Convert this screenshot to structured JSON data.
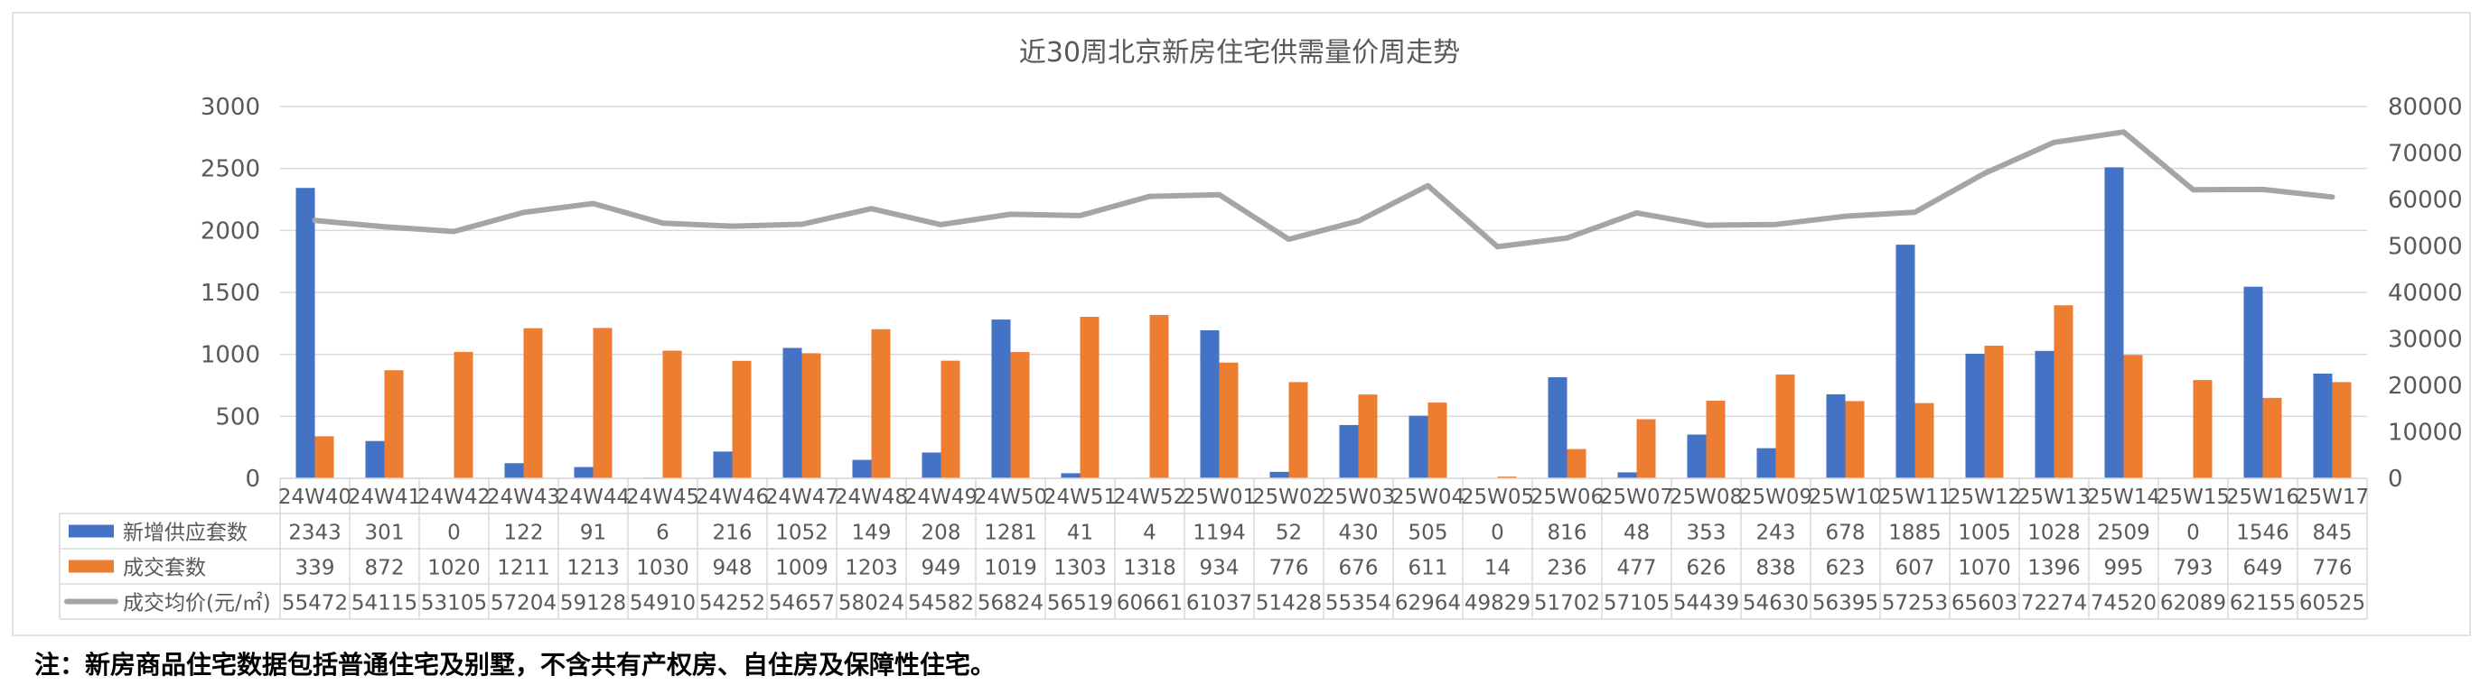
{
  "chart_data": {
    "type": "bar",
    "title": "近30周北京新房住宅供需量价周走势",
    "categories": [
      "24W40",
      "24W41",
      "24W42",
      "24W43",
      "24W44",
      "24W45",
      "24W46",
      "24W47",
      "24W48",
      "24W49",
      "24W50",
      "24W51",
      "24W52",
      "25W01",
      "25W02",
      "25W03",
      "25W04",
      "25W05",
      "25W06",
      "25W07",
      "25W08",
      "25W09",
      "25W10",
      "25W11",
      "25W12",
      "25W13",
      "25W14",
      "25W15",
      "25W16",
      "25W17"
    ],
    "series": [
      {
        "name": "新增供应套数",
        "type": "bar",
        "axis": "left",
        "color": "#4472C4",
        "values": [
          2343,
          301,
          0,
          122,
          91,
          6,
          216,
          1052,
          149,
          208,
          1281,
          41,
          4,
          1194,
          52,
          430,
          505,
          0,
          816,
          48,
          353,
          243,
          678,
          1885,
          1005,
          1028,
          2509,
          0,
          1546,
          845
        ]
      },
      {
        "name": "成交套数",
        "type": "bar",
        "axis": "left",
        "color": "#ED7D31",
        "values": [
          339,
          872,
          1020,
          1211,
          1213,
          1030,
          948,
          1009,
          1203,
          949,
          1019,
          1303,
          1318,
          934,
          776,
          676,
          611,
          14,
          236,
          477,
          626,
          838,
          623,
          607,
          1070,
          1396,
          995,
          793,
          649,
          776
        ]
      },
      {
        "name": "成交均价(元/㎡)",
        "type": "line",
        "axis": "right",
        "color": "#A5A5A5",
        "values": [
          55472,
          54115,
          53105,
          57204,
          59128,
          54910,
          54252,
          54657,
          58024,
          54582,
          56824,
          56519,
          60661,
          61037,
          51428,
          55354,
          62964,
          49829,
          51702,
          57105,
          54439,
          54630,
          56395,
          57253,
          65603,
          72274,
          74520,
          62089,
          62155,
          60525
        ]
      }
    ],
    "y_left": {
      "min": 0,
      "max": 3000,
      "ticks": [
        0,
        500,
        1000,
        1500,
        2000,
        2500,
        3000
      ]
    },
    "y_right": {
      "min": 0,
      "max": 80000,
      "ticks": [
        0,
        10000,
        20000,
        30000,
        40000,
        50000,
        60000,
        70000,
        80000
      ]
    },
    "grid": true,
    "legend": "data-table",
    "note": "注：新房商品住宅数据包括普通住宅及别墅，不含共有产权房、自住房及保障性住宅。"
  }
}
